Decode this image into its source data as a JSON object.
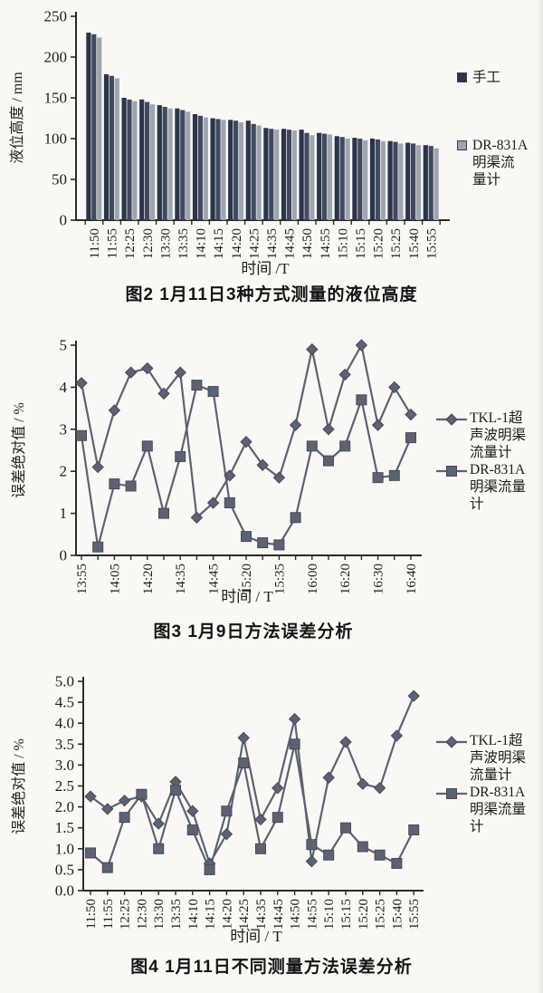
{
  "page": {
    "background": "#f9f8f4"
  },
  "colors": {
    "axis": "#2b2b2b",
    "text": "#1d1d1d",
    "marker_stroke": "#454b59",
    "background": "#f9f8f4"
  },
  "chart_data": [
    {
      "type": "bar",
      "title": "图2  1月11日3种方式测量的液位高度",
      "xlabel": "时间 /T",
      "ylabel": "液位高度 / mm",
      "ylim": [
        0,
        250
      ],
      "yticks": [
        0,
        50,
        100,
        150,
        200,
        250
      ],
      "ytick_labels": [
        "0",
        "50",
        "100",
        "150",
        "200",
        "250"
      ],
      "grid": false,
      "legend_position": "right",
      "categories": [
        "11:50",
        "11:55",
        "12:25",
        "12:30",
        "13:30",
        "13:35",
        "14:10",
        "14:15",
        "14:20",
        "14:25",
        "14:35",
        "14:45",
        "14:50",
        "14:55",
        "15:10",
        "15:15",
        "15:20",
        "15:25",
        "15:40",
        "15:55"
      ],
      "series": [
        {
          "name": "手工",
          "color": "#2b3448",
          "values": [
            230,
            179,
            150,
            148,
            141,
            137,
            130,
            125,
            123,
            122,
            113,
            112,
            111,
            107,
            103,
            101,
            100,
            97,
            95,
            92
          ]
        },
        {
          "name": "",
          "color": "#3f4a60",
          "values": [
            228,
            177,
            148,
            145,
            139,
            135,
            128,
            124,
            122,
            118,
            112,
            111,
            107,
            106,
            102,
            100,
            99,
            96,
            94,
            91
          ]
        },
        {
          "name": "DR-831A明渠流量计",
          "color": "#9ea4b0",
          "values": [
            224,
            174,
            146,
            142,
            137,
            133,
            126,
            123,
            120,
            116,
            111,
            110,
            104,
            105,
            100,
            98,
            97,
            94,
            92,
            88
          ]
        }
      ],
      "legend": [
        {
          "label": "手工",
          "marker": "swatch",
          "color": "#2b3448",
          "lines": [
            "手工"
          ]
        },
        {
          "label": "DR-831A明渠流量计",
          "marker": "swatch",
          "color": "#9ea4b0",
          "lines": [
            "DR-831A",
            "明渠流",
            "量计"
          ]
        }
      ]
    },
    {
      "type": "line",
      "title": "图3  1月9日方法误差分析",
      "xlabel": "时间 / T",
      "ylabel": "误差绝对值 / %",
      "ylim": [
        0,
        5
      ],
      "yticks": [
        0,
        1,
        2,
        3,
        4,
        5
      ],
      "ytick_labels": [
        "0",
        "1",
        "2",
        "3",
        "4",
        "5"
      ],
      "grid": false,
      "legend_position": "right",
      "categories": [
        "13:55",
        "",
        "14:05",
        "",
        "14:20",
        "",
        "14:35",
        "",
        "14:45",
        "",
        "15:20",
        "",
        "15:35",
        "",
        "16:00",
        "",
        "16:20",
        "",
        "16:30",
        "",
        "16:40"
      ],
      "series": [
        {
          "name": "TKL-1超声波明渠流量计",
          "marker": "diamond",
          "color": "#5b6272",
          "values": [
            4.1,
            2.1,
            3.45,
            4.35,
            4.45,
            3.85,
            4.35,
            0.9,
            1.25,
            1.9,
            2.7,
            2.15,
            1.85,
            3.1,
            4.9,
            3.0,
            4.3,
            5.0,
            3.1,
            4.0,
            3.35
          ]
        },
        {
          "name": "DR-831A明渠流量计",
          "marker": "square",
          "color": "#5b6272",
          "values": [
            2.85,
            0.2,
            1.7,
            1.65,
            2.6,
            1.0,
            2.35,
            4.05,
            3.9,
            1.25,
            0.45,
            0.3,
            0.25,
            0.9,
            2.6,
            2.25,
            2.6,
            3.7,
            1.85,
            1.9,
            2.8
          ]
        }
      ],
      "legend": [
        {
          "label": "TKL-1超声波明渠流量计",
          "marker": "diamond",
          "color": "#5b6272",
          "lines": [
            "TKL-1超",
            "声波明渠",
            "流量计"
          ]
        },
        {
          "label": "DR-831A明渠流量计",
          "marker": "square",
          "color": "#5b6272",
          "lines": [
            "DR-831A",
            "明渠流量",
            "计"
          ]
        }
      ]
    },
    {
      "type": "line",
      "title": "图4  1月11日不同测量方法误差分析",
      "xlabel": "时间 / T",
      "ylabel": "误差绝对值 / %",
      "ylim": [
        0,
        5
      ],
      "yticks": [
        0,
        0.5,
        1,
        1.5,
        2,
        2.5,
        3,
        3.5,
        4,
        4.5,
        5
      ],
      "ytick_labels": [
        "0.0",
        "0.5",
        "1.0",
        "1.5",
        "2.0",
        "2.5",
        "3.0",
        "3.5",
        "4.0",
        "4.5",
        "5.0"
      ],
      "grid": false,
      "legend_position": "right",
      "categories": [
        "11:50",
        "11:55",
        "12:25",
        "12:30",
        "13:30",
        "13:35",
        "14:10",
        "14:15",
        "14:20",
        "14:25",
        "14:35",
        "14:45",
        "14:50",
        "14:55",
        "15:10",
        "15:15",
        "15:20",
        "15:25",
        "15:40",
        "15:55"
      ],
      "series": [
        {
          "name": "TKL-1超声波明渠流量计",
          "marker": "diamond",
          "color": "#5b6272",
          "values": [
            2.25,
            1.95,
            2.15,
            2.25,
            1.6,
            2.6,
            1.9,
            0.65,
            1.35,
            3.65,
            1.7,
            2.45,
            4.1,
            0.7,
            2.7,
            3.55,
            2.55,
            2.45,
            3.7,
            4.65
          ]
        },
        {
          "name": "DR-831A明渠流量计",
          "marker": "square",
          "color": "#5b6272",
          "values": [
            0.9,
            0.55,
            1.75,
            2.3,
            1.0,
            2.4,
            1.45,
            0.5,
            1.9,
            3.05,
            1.0,
            1.75,
            3.5,
            1.1,
            0.85,
            1.5,
            1.05,
            0.85,
            0.65,
            1.45
          ]
        }
      ],
      "legend": [
        {
          "label": "TKL-1超声波明渠流量计",
          "marker": "diamond",
          "color": "#5b6272",
          "lines": [
            "TKL-1超",
            "声波明渠",
            "流量计"
          ]
        },
        {
          "label": "DR-831A明渠流量计",
          "marker": "square",
          "color": "#5b6272",
          "lines": [
            "DR-831A",
            "明渠流量",
            "计"
          ]
        }
      ]
    }
  ]
}
